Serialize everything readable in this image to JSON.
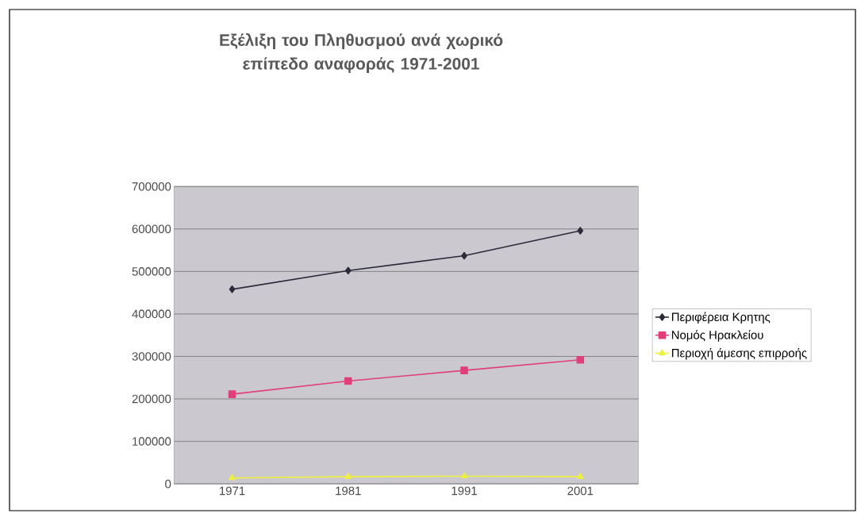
{
  "chart_data": {
    "type": "line",
    "title": "Εξέλιξη του Πληθυσμού ανά χωρικό επίπεδο αναφοράς 1971-2001",
    "categories": [
      "1971",
      "1981",
      "1991",
      "2001"
    ],
    "series": [
      {
        "name": "Περιφέρεια Κρητης",
        "color": "#2b2b3b",
        "marker": "diamond",
        "values": [
          458000,
          502000,
          537000,
          596000
        ]
      },
      {
        "name": "Νομός Ηρακλείου",
        "color": "#e0407a",
        "marker": "square",
        "values": [
          211000,
          242000,
          267000,
          292000
        ]
      },
      {
        "name": "Περιοχή άμεσης επιρροής",
        "color": "#eef040",
        "marker": "triangle",
        "values": [
          14000,
          17000,
          18000,
          17000
        ]
      }
    ],
    "ylim": [
      0,
      700000
    ],
    "yticks": [
      0,
      100000,
      200000,
      300000,
      400000,
      500000,
      600000,
      700000
    ],
    "grid": "y",
    "legend": "right",
    "line_style": "solid"
  }
}
